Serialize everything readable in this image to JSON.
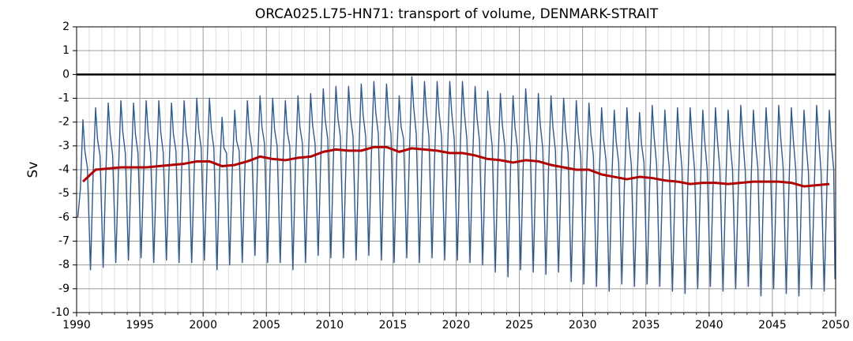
{
  "chart_data": {
    "type": "line",
    "title": "ORCA025.L75-HN71: transport of volume, DENMARK-STRAIT",
    "y_label": "Sv",
    "xlim": [
      1990,
      2050
    ],
    "ylim": [
      -10,
      2
    ],
    "xticks": [
      1990,
      1995,
      2000,
      2005,
      2010,
      2015,
      2020,
      2025,
      2030,
      2035,
      2040,
      2045,
      2050
    ],
    "xminor_ticks": [
      1991,
      1992,
      1993,
      1994,
      1996,
      1997,
      1998,
      1999,
      2001,
      2002,
      2003,
      2004,
      2006,
      2007,
      2008,
      2009,
      2011,
      2012,
      2013,
      2014,
      2016,
      2017,
      2018,
      2019,
      2021,
      2022,
      2023,
      2024,
      2026,
      2027,
      2028,
      2029,
      2031,
      2032,
      2033,
      2034,
      2036,
      2037,
      2038,
      2039,
      2041,
      2042,
      2043,
      2044,
      2046,
      2047,
      2048,
      2049
    ],
    "yticks": [
      -10,
      -9,
      -8,
      -7,
      -6,
      -5,
      -4,
      -3,
      -2,
      -1,
      0,
      1,
      2
    ],
    "grid": true,
    "series": [
      {
        "color": "#2f5a8c",
        "x": [
          1990.1,
          1990.3,
          1990.5,
          1990.65,
          1990.85,
          1991.1,
          1991.3,
          1991.5,
          1991.65,
          1991.85,
          1992.1,
          1992.3,
          1992.5,
          1992.65,
          1992.85,
          1993.1,
          1993.3,
          1993.5,
          1993.65,
          1993.85,
          1994.1,
          1994.3,
          1994.5,
          1994.65,
          1994.85,
          1995.1,
          1995.3,
          1995.5,
          1995.65,
          1995.85,
          1996.1,
          1996.3,
          1996.5,
          1996.65,
          1996.85,
          1997.1,
          1997.3,
          1997.5,
          1997.65,
          1997.85,
          1998.1,
          1998.3,
          1998.5,
          1998.65,
          1998.85,
          1999.1,
          1999.3,
          1999.5,
          1999.65,
          1999.85,
          2000.1,
          2000.3,
          2000.5,
          2000.65,
          2000.85,
          2001.1,
          2001.3,
          2001.5,
          2001.65,
          2001.85,
          2002.1,
          2002.3,
          2002.5,
          2002.65,
          2002.85,
          2003.1,
          2003.3,
          2003.5,
          2003.65,
          2003.85,
          2004.1,
          2004.3,
          2004.5,
          2004.65,
          2004.85,
          2005.1,
          2005.3,
          2005.5,
          2005.65,
          2005.85,
          2006.1,
          2006.3,
          2006.5,
          2006.65,
          2006.85,
          2007.1,
          2007.3,
          2007.5,
          2007.65,
          2007.85,
          2008.1,
          2008.3,
          2008.5,
          2008.65,
          2008.85,
          2009.1,
          2009.3,
          2009.5,
          2009.65,
          2009.85,
          2010.1,
          2010.3,
          2010.5,
          2010.65,
          2010.85,
          2011.1,
          2011.3,
          2011.5,
          2011.65,
          2011.85,
          2012.1,
          2012.3,
          2012.5,
          2012.65,
          2012.85,
          2013.1,
          2013.3,
          2013.5,
          2013.65,
          2013.85,
          2014.1,
          2014.3,
          2014.5,
          2014.65,
          2014.85,
          2015.1,
          2015.3,
          2015.5,
          2015.65,
          2015.85,
          2016.1,
          2016.3,
          2016.5,
          2016.65,
          2016.85,
          2017.1,
          2017.3,
          2017.5,
          2017.65,
          2017.85,
          2018.1,
          2018.3,
          2018.5,
          2018.65,
          2018.85,
          2019.1,
          2019.3,
          2019.5,
          2019.65,
          2019.85,
          2020.1,
          2020.3,
          2020.5,
          2020.65,
          2020.85,
          2021.1,
          2021.3,
          2021.5,
          2021.65,
          2021.85,
          2022.1,
          2022.3,
          2022.5,
          2022.65,
          2022.85,
          2023.1,
          2023.3,
          2023.5,
          2023.65,
          2023.85,
          2024.1,
          2024.3,
          2024.5,
          2024.65,
          2024.85,
          2025.1,
          2025.3,
          2025.5,
          2025.65,
          2025.85,
          2026.1,
          2026.3,
          2026.5,
          2026.65,
          2026.85,
          2027.1,
          2027.3,
          2027.5,
          2027.65,
          2027.85,
          2028.1,
          2028.3,
          2028.5,
          2028.65,
          2028.85,
          2029.1,
          2029.3,
          2029.5,
          2029.65,
          2029.85,
          2030.1,
          2030.3,
          2030.5,
          2030.65,
          2030.85,
          2031.1,
          2031.3,
          2031.5,
          2031.65,
          2031.85,
          2032.1,
          2032.3,
          2032.5,
          2032.65,
          2032.85,
          2033.1,
          2033.3,
          2033.5,
          2033.65,
          2033.85,
          2034.1,
          2034.3,
          2034.5,
          2034.65,
          2034.85,
          2035.1,
          2035.3,
          2035.5,
          2035.65,
          2035.85,
          2036.1,
          2036.3,
          2036.5,
          2036.65,
          2036.85,
          2037.1,
          2037.3,
          2037.5,
          2037.65,
          2037.85,
          2038.1,
          2038.3,
          2038.5,
          2038.65,
          2038.85,
          2039.1,
          2039.3,
          2039.5,
          2039.65,
          2039.85,
          2040.1,
          2040.3,
          2040.5,
          2040.65,
          2040.85,
          2041.1,
          2041.3,
          2041.5,
          2041.65,
          2041.85,
          2042.1,
          2042.3,
          2042.5,
          2042.65,
          2042.85,
          2043.1,
          2043.3,
          2043.5,
          2043.65,
          2043.85,
          2044.1,
          2044.3,
          2044.5,
          2044.65,
          2044.85,
          2045.1,
          2045.3,
          2045.5,
          2045.65,
          2045.85,
          2046.1,
          2046.3,
          2046.5,
          2046.65,
          2046.85,
          2047.1,
          2047.3,
          2047.5,
          2047.65,
          2047.85,
          2048.1,
          2048.3,
          2048.5,
          2048.65,
          2048.85,
          2049.1,
          2049.3,
          2049.5,
          2049.65,
          2049.85,
          2049.95
        ],
        "values": [
          -6.0,
          -4.8,
          -1.9,
          -3.2,
          -3.9,
          -8.2,
          -4.3,
          -1.4,
          -2.7,
          -3.4,
          -8.1,
          -4.3,
          -1.2,
          -2.5,
          -3.4,
          -7.9,
          -4.2,
          -1.1,
          -2.4,
          -3.3,
          -7.8,
          -4.2,
          -1.2,
          -2.5,
          -3.3,
          -7.7,
          -4.2,
          -1.1,
          -2.4,
          -3.3,
          -7.9,
          -4.2,
          -1.1,
          -2.4,
          -3.3,
          -7.8,
          -4.1,
          -1.2,
          -2.5,
          -3.2,
          -7.9,
          -4.1,
          -1.1,
          -2.4,
          -3.2,
          -7.9,
          -4.0,
          -1.0,
          -2.3,
          -3.1,
          -7.8,
          -4.0,
          -1.0,
          -2.3,
          -3.1,
          -8.2,
          -4.2,
          -1.8,
          -3.1,
          -3.3,
          -8.0,
          -4.1,
          -1.5,
          -2.8,
          -3.2,
          -7.9,
          -4.0,
          -1.1,
          -2.4,
          -3.1,
          -7.6,
          -3.8,
          -0.9,
          -2.2,
          -2.9,
          -7.9,
          -3.9,
          -1.0,
          -2.3,
          -3.0,
          -7.9,
          -3.9,
          -1.1,
          -2.4,
          -3.0,
          -8.2,
          -3.8,
          -0.9,
          -2.2,
          -2.9,
          -7.9,
          -3.8,
          -0.8,
          -2.1,
          -2.9,
          -7.6,
          -3.6,
          -0.6,
          -1.9,
          -2.7,
          -7.7,
          -3.5,
          -0.5,
          -1.8,
          -2.6,
          -7.7,
          -3.5,
          -0.5,
          -1.8,
          -2.6,
          -7.8,
          -3.5,
          -0.4,
          -1.7,
          -2.6,
          -7.6,
          -3.4,
          -0.3,
          -1.6,
          -2.5,
          -7.8,
          -3.4,
          -0.4,
          -1.7,
          -2.5,
          -7.9,
          -3.6,
          -0.9,
          -2.2,
          -2.7,
          -7.7,
          -3.4,
          -0.1,
          -1.4,
          -2.5,
          -7.9,
          -3.5,
          -0.3,
          -1.6,
          -2.6,
          -7.7,
          -3.5,
          -0.3,
          -1.6,
          -2.6,
          -7.8,
          -3.6,
          -0.3,
          -1.6,
          -2.7,
          -7.8,
          -3.6,
          -0.3,
          -1.6,
          -2.7,
          -7.9,
          -3.7,
          -0.5,
          -1.8,
          -2.8,
          -8.0,
          -3.9,
          -0.7,
          -2.0,
          -3.0,
          -8.3,
          -3.9,
          -0.8,
          -2.1,
          -3.0,
          -8.5,
          -4.0,
          -0.9,
          -2.2,
          -3.1,
          -8.2,
          -3.9,
          -0.6,
          -1.9,
          -3.0,
          -8.3,
          -4.0,
          -0.8,
          -2.1,
          -3.1,
          -8.4,
          -4.1,
          -0.9,
          -2.2,
          -3.2,
          -8.3,
          -4.2,
          -1.0,
          -2.3,
          -3.3,
          -8.7,
          -4.3,
          -1.1,
          -2.4,
          -3.4,
          -8.8,
          -4.3,
          -1.2,
          -2.5,
          -3.4,
          -8.9,
          -4.5,
          -1.4,
          -2.7,
          -3.6,
          -9.1,
          -4.6,
          -1.5,
          -2.8,
          -3.7,
          -8.8,
          -4.7,
          -1.4,
          -2.7,
          -3.8,
          -8.9,
          -4.6,
          -1.6,
          -2.9,
          -3.7,
          -8.8,
          -4.7,
          -1.3,
          -2.6,
          -3.8,
          -8.9,
          -4.8,
          -1.5,
          -2.8,
          -3.9,
          -9.1,
          -4.8,
          -1.4,
          -2.7,
          -3.9,
          -9.2,
          -4.9,
          -1.4,
          -2.7,
          -4.0,
          -9.0,
          -4.9,
          -1.5,
          -2.8,
          -4.0,
          -8.9,
          -4.9,
          -1.4,
          -2.7,
          -4.0,
          -9.1,
          -4.9,
          -1.5,
          -2.8,
          -4.0,
          -9.0,
          -4.9,
          -1.3,
          -2.6,
          -4.0,
          -8.9,
          -4.8,
          -1.5,
          -2.8,
          -3.9,
          -9.3,
          -4.8,
          -1.4,
          -2.7,
          -3.9,
          -9.0,
          -4.8,
          -1.3,
          -2.6,
          -3.9,
          -9.2,
          -4.9,
          -1.4,
          -2.7,
          -4.0,
          -9.3,
          -5.0,
          -1.5,
          -2.8,
          -4.1,
          -9.0,
          -5.0,
          -1.3,
          -2.6,
          -4.1,
          -9.1,
          -4.9,
          -1.5,
          -2.8,
          -4.0,
          -8.6
        ]
      },
      {
        "color": "#b00000",
        "x": [
          1990.5,
          1991.5,
          1992.5,
          1993.5,
          1994.5,
          1995.5,
          1996.5,
          1997.5,
          1998.5,
          1999.5,
          2000.5,
          2001.5,
          2002.5,
          2003.5,
          2004.5,
          2005.5,
          2006.5,
          2007.5,
          2008.5,
          2009.5,
          2010.5,
          2011.5,
          2012.5,
          2013.5,
          2014.5,
          2015.5,
          2016.5,
          2017.5,
          2018.5,
          2019.5,
          2020.5,
          2021.5,
          2022.5,
          2023.5,
          2024.5,
          2025.5,
          2026.5,
          2027.5,
          2028.5,
          2029.5,
          2030.5,
          2031.5,
          2032.5,
          2033.5,
          2034.5,
          2035.5,
          2036.5,
          2037.5,
          2038.5,
          2039.5,
          2040.5,
          2041.5,
          2042.5,
          2043.5,
          2044.5,
          2045.5,
          2046.5,
          2047.5,
          2048.5,
          2049.5
        ],
        "values": [
          -4.5,
          -4.0,
          -3.95,
          -3.9,
          -3.9,
          -3.9,
          -3.85,
          -3.8,
          -3.75,
          -3.65,
          -3.65,
          -3.85,
          -3.8,
          -3.65,
          -3.45,
          -3.55,
          -3.6,
          -3.5,
          -3.45,
          -3.25,
          -3.15,
          -3.2,
          -3.2,
          -3.05,
          -3.05,
          -3.25,
          -3.1,
          -3.15,
          -3.2,
          -3.3,
          -3.3,
          -3.4,
          -3.55,
          -3.6,
          -3.7,
          -3.6,
          -3.65,
          -3.8,
          -3.9,
          -4.0,
          -4.0,
          -4.2,
          -4.3,
          -4.4,
          -4.3,
          -4.35,
          -4.45,
          -4.5,
          -4.6,
          -4.55,
          -4.55,
          -4.6,
          -4.55,
          -4.5,
          -4.5,
          -4.5,
          -4.55,
          -4.7,
          -4.65,
          -4.6
        ]
      }
    ]
  }
}
